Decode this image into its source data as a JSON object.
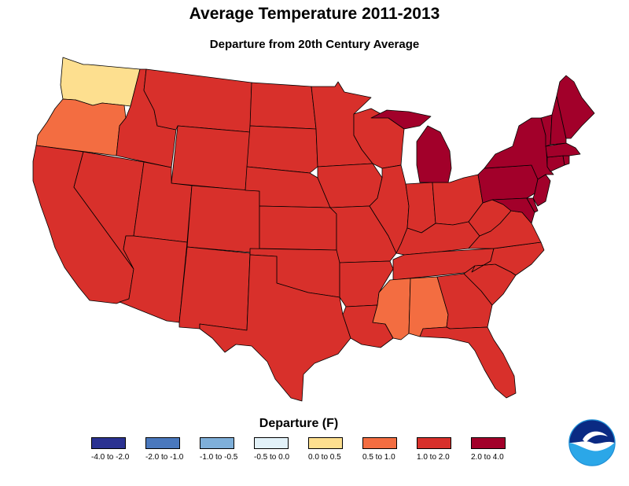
{
  "header": {
    "title": "Average Temperature 2011-2013",
    "subtitle": "Departure from 20th Century Average"
  },
  "legend": {
    "title": "Departure (F)",
    "items": [
      {
        "label": "-4.0 to -2.0",
        "color": "#2b3291"
      },
      {
        "label": "-2.0 to -1.0",
        "color": "#4a78bd"
      },
      {
        "label": "-1.0 to -0.5",
        "color": "#7fafd9"
      },
      {
        "label": "-0.5 to 0.0",
        "color": "#e2f1f8"
      },
      {
        "label": "0.0 to 0.5",
        "color": "#fddf8f"
      },
      {
        "label": "0.5  to 1.0",
        "color": "#f36d41"
      },
      {
        "label": "1.0  to 2.0",
        "color": "#d8302b"
      },
      {
        "label": "2.0 to 4.0",
        "color": "#a2002a"
      }
    ]
  },
  "map_data": {
    "region": "Contiguous United States",
    "colors": {
      "0.0 to 0.5": "#fddf8f",
      "0.5 to 1.0": "#f36d41",
      "1.0 to 2.0": "#d8302b",
      "2.0 to 4.0": "#a2002a"
    },
    "states": [
      {
        "name": "Washington",
        "bin": "0.0 to 0.5"
      },
      {
        "name": "Oregon",
        "bin": "0.5 to 1.0"
      },
      {
        "name": "Mississippi",
        "bin": "0.5 to 1.0"
      },
      {
        "name": "Alabama",
        "bin": "0.5 to 1.0"
      },
      {
        "name": "Michigan",
        "bin": "2.0 to 4.0"
      },
      {
        "name": "New York",
        "bin": "2.0 to 4.0"
      },
      {
        "name": "Pennsylvania",
        "bin": "2.0 to 4.0"
      },
      {
        "name": "New Jersey",
        "bin": "2.0 to 4.0"
      },
      {
        "name": "Maryland",
        "bin": "2.0 to 4.0"
      },
      {
        "name": "Delaware",
        "bin": "2.0 to 4.0"
      },
      {
        "name": "Connecticut",
        "bin": "2.0 to 4.0"
      },
      {
        "name": "Rhode Island",
        "bin": "2.0 to 4.0"
      },
      {
        "name": "Massachusetts",
        "bin": "2.0 to 4.0"
      },
      {
        "name": "Vermont",
        "bin": "2.0 to 4.0"
      },
      {
        "name": "New Hampshire",
        "bin": "2.0 to 4.0"
      },
      {
        "name": "Maine",
        "bin": "2.0 to 4.0"
      },
      {
        "name": "California",
        "bin": "1.0 to 2.0"
      },
      {
        "name": "Nevada",
        "bin": "1.0 to 2.0"
      },
      {
        "name": "Idaho",
        "bin": "1.0 to 2.0"
      },
      {
        "name": "Montana",
        "bin": "1.0 to 2.0"
      },
      {
        "name": "Wyoming",
        "bin": "1.0 to 2.0"
      },
      {
        "name": "Utah",
        "bin": "1.0 to 2.0"
      },
      {
        "name": "Arizona",
        "bin": "1.0 to 2.0"
      },
      {
        "name": "Colorado",
        "bin": "1.0 to 2.0"
      },
      {
        "name": "New Mexico",
        "bin": "1.0 to 2.0"
      },
      {
        "name": "North Dakota",
        "bin": "1.0 to 2.0"
      },
      {
        "name": "South Dakota",
        "bin": "1.0 to 2.0"
      },
      {
        "name": "Nebraska",
        "bin": "1.0 to 2.0"
      },
      {
        "name": "Kansas",
        "bin": "1.0 to 2.0"
      },
      {
        "name": "Oklahoma",
        "bin": "1.0 to 2.0"
      },
      {
        "name": "Texas",
        "bin": "1.0 to 2.0"
      },
      {
        "name": "Minnesota",
        "bin": "1.0 to 2.0"
      },
      {
        "name": "Iowa",
        "bin": "1.0 to 2.0"
      },
      {
        "name": "Missouri",
        "bin": "1.0 to 2.0"
      },
      {
        "name": "Arkansas",
        "bin": "1.0 to 2.0"
      },
      {
        "name": "Louisiana",
        "bin": "1.0 to 2.0"
      },
      {
        "name": "Wisconsin",
        "bin": "1.0 to 2.0"
      },
      {
        "name": "Illinois",
        "bin": "1.0 to 2.0"
      },
      {
        "name": "Indiana",
        "bin": "1.0 to 2.0"
      },
      {
        "name": "Ohio",
        "bin": "1.0 to 2.0"
      },
      {
        "name": "Kentucky",
        "bin": "1.0 to 2.0"
      },
      {
        "name": "Tennessee",
        "bin": "1.0 to 2.0"
      },
      {
        "name": "West Virginia",
        "bin": "1.0 to 2.0"
      },
      {
        "name": "Virginia",
        "bin": "1.0 to 2.0"
      },
      {
        "name": "North Carolina",
        "bin": "1.0 to 2.0"
      },
      {
        "name": "South Carolina",
        "bin": "1.0 to 2.0"
      },
      {
        "name": "Georgia",
        "bin": "1.0 to 2.0"
      },
      {
        "name": "Florida",
        "bin": "1.0 to 2.0"
      }
    ]
  },
  "logo": {
    "name": "noaa-logo-icon"
  }
}
